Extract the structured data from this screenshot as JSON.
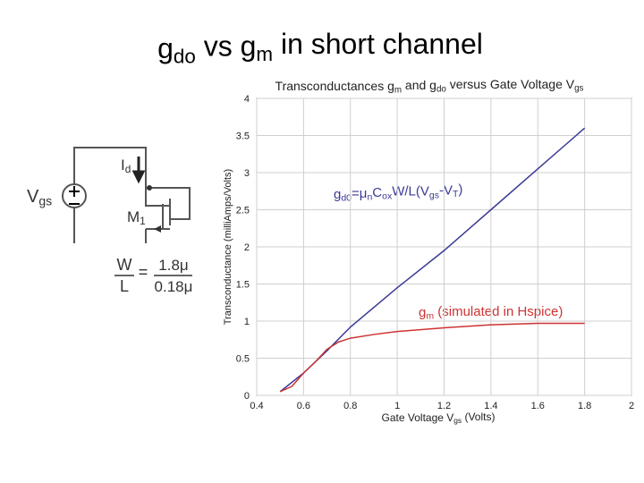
{
  "slide_title": {
    "parts": [
      {
        "t": "g"
      },
      {
        "sub": "do"
      },
      {
        "t": " vs g"
      },
      {
        "sub": "m"
      },
      {
        "t": " in short channel"
      }
    ]
  },
  "circuit": {
    "vgs": {
      "parts": [
        {
          "t": "V"
        },
        {
          "sub": "gs"
        }
      ]
    },
    "id": {
      "parts": [
        {
          "t": "I"
        },
        {
          "sub": "d"
        }
      ]
    },
    "m1": {
      "parts": [
        {
          "t": "M"
        },
        {
          "sub": "1"
        }
      ]
    },
    "w": "W",
    "l": "L",
    "equals": "=",
    "w_value": "1.8μ",
    "l_value": "0.18μ"
  },
  "chart_data": {
    "type": "line",
    "title": {
      "parts": [
        {
          "t": "Transconductances g"
        },
        {
          "sub": "m"
        },
        {
          "t": " and g"
        },
        {
          "sub": "do"
        },
        {
          "t": " versus Gate Voltage V"
        },
        {
          "sub": "gs"
        }
      ]
    },
    "x_label": {
      "parts": [
        {
          "t": "Gate Voltage V"
        },
        {
          "sub": "gs"
        },
        {
          "t": " (Volts)"
        }
      ]
    },
    "y_label": "Transconductance (milliAmps/Volts)",
    "xlim": [
      0.4,
      2
    ],
    "xticks": [
      0.4,
      0.6,
      0.8,
      1,
      1.2,
      1.4,
      1.6,
      1.8,
      2
    ],
    "ylim": [
      0,
      4
    ],
    "yticks": [
      0,
      0.5,
      1,
      1.5,
      2,
      2.5,
      3,
      3.5,
      4
    ],
    "grid": true,
    "series": [
      {
        "name": {
          "parts": [
            {
              "t": "g"
            },
            {
              "sub": "d0"
            },
            {
              "t": "=μ"
            },
            {
              "sub": "n"
            },
            {
              "t": "C"
            },
            {
              "sub": "ox"
            },
            {
              "t": "W/L(V"
            },
            {
              "sub": "gs"
            },
            {
              "t": "-V"
            },
            {
              "sub": "T"
            },
            {
              "t": ")"
            }
          ]
        },
        "color": "#3a3a96",
        "x": [
          0.5,
          0.6,
          0.7,
          0.8,
          1.0,
          1.2,
          1.4,
          1.6,
          1.8
        ],
        "values": [
          0.05,
          0.3,
          0.6,
          0.92,
          1.45,
          1.95,
          2.5,
          3.05,
          3.6
        ]
      },
      {
        "name": {
          "parts": [
            {
              "t": "g"
            },
            {
              "sub": "m"
            },
            {
              "t": " (simulated in Hspice)"
            }
          ]
        },
        "color": "#cc3333",
        "x": [
          0.5,
          0.55,
          0.6,
          0.65,
          0.7,
          0.75,
          0.8,
          0.9,
          1.0,
          1.2,
          1.4,
          1.6,
          1.8
        ],
        "values": [
          0.05,
          0.12,
          0.3,
          0.45,
          0.62,
          0.72,
          0.77,
          0.82,
          0.86,
          0.91,
          0.95,
          0.97,
          0.97
        ]
      }
    ]
  }
}
